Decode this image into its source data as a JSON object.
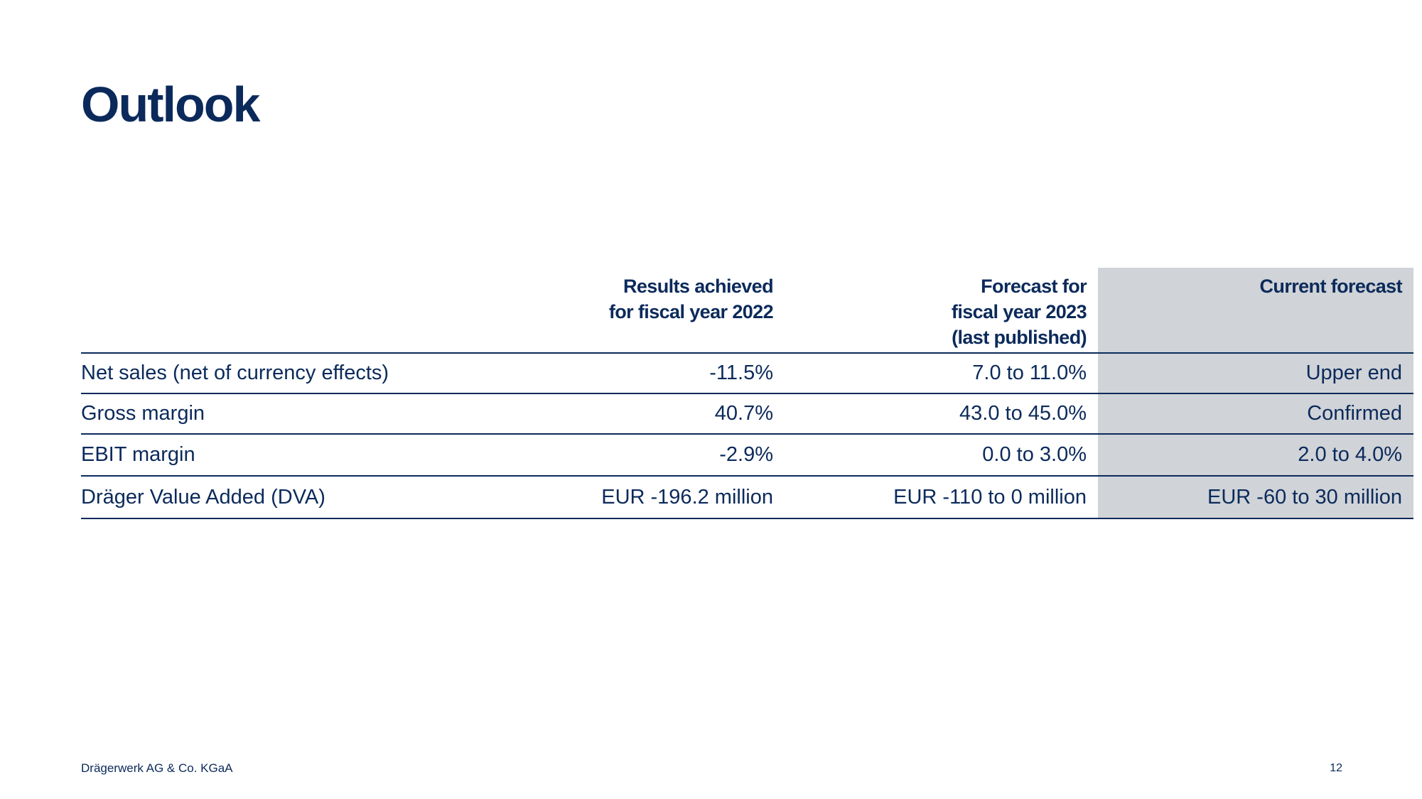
{
  "slide": {
    "title": "Outlook"
  },
  "table": {
    "headers": [
      "",
      "Results achieved\nfor fiscal year 2022",
      "Forecast for\nfiscal year 2023\n(last published)",
      "Current forecast"
    ],
    "rows": [
      [
        "Net sales (net of currency effects)",
        "-11.5%",
        "7.0 to 11.0%",
        "Upper end"
      ],
      [
        "Gross margin",
        "40.7%",
        "43.0 to 45.0%",
        "Confirmed"
      ],
      [
        "EBIT margin",
        "-2.9%",
        "0.0 to 3.0%",
        "2.0 to 4.0%"
      ],
      [
        "Dräger Value Added (DVA)",
        "EUR -196.2 million",
        "EUR -110 to 0 million",
        "EUR -60 to 30 million"
      ]
    ]
  },
  "footer": {
    "company": "Drägerwerk AG & Co. KGaA",
    "page_number": "12"
  },
  "colors": {
    "primary": "#0b2a5b",
    "highlight_column": "#d0d3d7",
    "background": "#ffffff"
  }
}
